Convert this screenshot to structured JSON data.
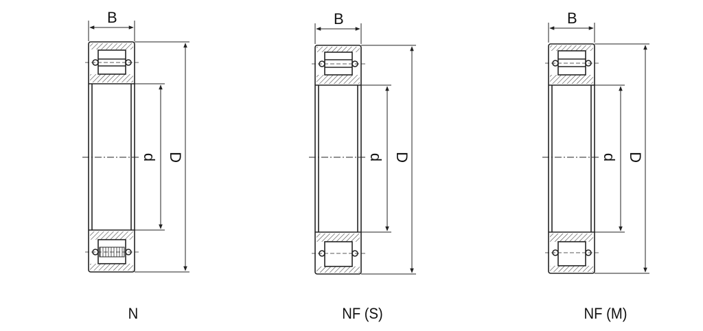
{
  "diagrams": [
    {
      "name": "bearing-n",
      "caption": "N",
      "width_label": "B",
      "bore_label": "d",
      "outer_label": "D"
    },
    {
      "name": "bearing-nf-s",
      "caption": "NF (S)",
      "width_label": "B",
      "bore_label": "d",
      "outer_label": "D"
    },
    {
      "name": "bearing-nf-m",
      "caption": "NF (M)",
      "width_label": "B",
      "bore_label": "d",
      "outer_label": "D"
    }
  ],
  "colors": {
    "line": "#222222",
    "hatch": "#444444",
    "roller": "#555555"
  }
}
